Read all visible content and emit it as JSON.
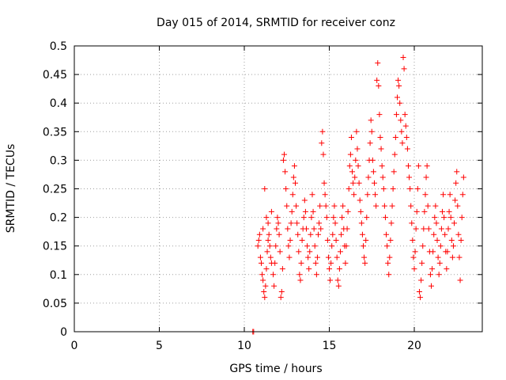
{
  "chart_data": {
    "type": "scatter",
    "title": "Day 015 of 2014, SRMTID for receiver conz",
    "xlabel": "GPS time / hours",
    "ylabel": "SRMTID / TECUs",
    "xlim": [
      0,
      24
    ],
    "ylim": [
      0,
      0.5
    ],
    "xticks": [
      0,
      5,
      10,
      15,
      20
    ],
    "yticks": [
      0,
      0.05,
      0.1,
      0.15,
      0.2,
      0.25,
      0.3,
      0.35,
      0.4,
      0.45,
      0.5
    ],
    "xtick_labels": [
      "0",
      "5",
      "10",
      "15",
      "20"
    ],
    "ytick_labels": [
      "0",
      "0.05",
      "0.1",
      "0.15",
      "0.2",
      "0.25",
      "0.3",
      "0.35",
      "0.4",
      "0.45",
      "0.5"
    ],
    "grid": true,
    "marker": "+",
    "color": "#ff0000",
    "series": [
      {
        "name": "SRMTID",
        "points": [
          [
            10.5,
            0.0
          ],
          [
            10.55,
            0.0
          ],
          [
            10.8,
            0.15
          ],
          [
            10.85,
            0.16
          ],
          [
            10.9,
            0.17
          ],
          [
            10.95,
            0.13
          ],
          [
            11.0,
            0.12
          ],
          [
            11.05,
            0.1
          ],
          [
            11.1,
            0.09
          ],
          [
            11.15,
            0.07
          ],
          [
            11.2,
            0.06
          ],
          [
            11.25,
            0.08
          ],
          [
            11.3,
            0.11
          ],
          [
            11.35,
            0.14
          ],
          [
            11.4,
            0.16
          ],
          [
            11.45,
            0.17
          ],
          [
            11.5,
            0.15
          ],
          [
            11.55,
            0.13
          ],
          [
            11.6,
            0.12
          ],
          [
            11.2,
            0.25
          ],
          [
            11.3,
            0.2
          ],
          [
            11.1,
            0.18
          ],
          [
            11.4,
            0.19
          ],
          [
            11.6,
            0.21
          ],
          [
            11.7,
            0.1
          ],
          [
            11.75,
            0.08
          ],
          [
            11.8,
            0.12
          ],
          [
            11.85,
            0.15
          ],
          [
            11.9,
            0.18
          ],
          [
            11.95,
            0.2
          ],
          [
            12.0,
            0.19
          ],
          [
            12.05,
            0.17
          ],
          [
            12.1,
            0.14
          ],
          [
            12.15,
            0.06
          ],
          [
            12.2,
            0.07
          ],
          [
            12.25,
            0.11
          ],
          [
            12.3,
            0.3
          ],
          [
            12.35,
            0.31
          ],
          [
            12.4,
            0.28
          ],
          [
            12.45,
            0.25
          ],
          [
            12.5,
            0.22
          ],
          [
            12.55,
            0.18
          ],
          [
            12.6,
            0.15
          ],
          [
            12.65,
            0.13
          ],
          [
            12.7,
            0.16
          ],
          [
            12.75,
            0.19
          ],
          [
            12.8,
            0.21
          ],
          [
            12.85,
            0.24
          ],
          [
            12.9,
            0.27
          ],
          [
            12.95,
            0.29
          ],
          [
            13.0,
            0.26
          ],
          [
            13.05,
            0.22
          ],
          [
            13.1,
            0.19
          ],
          [
            13.15,
            0.17
          ],
          [
            13.2,
            0.14
          ],
          [
            13.25,
            0.1
          ],
          [
            13.3,
            0.09
          ],
          [
            13.35,
            0.12
          ],
          [
            13.4,
            0.16
          ],
          [
            13.45,
            0.18
          ],
          [
            13.5,
            0.2
          ],
          [
            13.55,
            0.23
          ],
          [
            13.6,
            0.21
          ],
          [
            13.65,
            0.18
          ],
          [
            13.7,
            0.15
          ],
          [
            13.75,
            0.13
          ],
          [
            13.8,
            0.11
          ],
          [
            13.85,
            0.14
          ],
          [
            13.9,
            0.17
          ],
          [
            13.95,
            0.2
          ],
          [
            14.0,
            0.24
          ],
          [
            14.05,
            0.21
          ],
          [
            14.1,
            0.18
          ],
          [
            14.15,
            0.15
          ],
          [
            14.2,
            0.12
          ],
          [
            14.25,
            0.1
          ],
          [
            14.3,
            0.13
          ],
          [
            14.35,
            0.17
          ],
          [
            14.4,
            0.19
          ],
          [
            14.45,
            0.22
          ],
          [
            14.5,
            0.18
          ],
          [
            14.55,
            0.33
          ],
          [
            14.6,
            0.35
          ],
          [
            14.65,
            0.31
          ],
          [
            14.7,
            0.26
          ],
          [
            14.75,
            0.24
          ],
          [
            14.8,
            0.22
          ],
          [
            14.85,
            0.2
          ],
          [
            14.9,
            0.16
          ],
          [
            14.95,
            0.13
          ],
          [
            15.0,
            0.11
          ],
          [
            15.05,
            0.09
          ],
          [
            15.1,
            0.12
          ],
          [
            15.15,
            0.15
          ],
          [
            15.2,
            0.17
          ],
          [
            15.25,
            0.2
          ],
          [
            15.3,
            0.22
          ],
          [
            15.35,
            0.19
          ],
          [
            15.4,
            0.16
          ],
          [
            15.45,
            0.13
          ],
          [
            15.5,
            0.09
          ],
          [
            15.55,
            0.08
          ],
          [
            15.6,
            0.11
          ],
          [
            15.65,
            0.14
          ],
          [
            15.7,
            0.17
          ],
          [
            15.75,
            0.2
          ],
          [
            15.8,
            0.22
          ],
          [
            15.85,
            0.18
          ],
          [
            15.9,
            0.15
          ],
          [
            15.95,
            0.12
          ],
          [
            16.0,
            0.15
          ],
          [
            16.05,
            0.18
          ],
          [
            16.1,
            0.21
          ],
          [
            16.15,
            0.25
          ],
          [
            16.2,
            0.29
          ],
          [
            16.25,
            0.31
          ],
          [
            16.3,
            0.34
          ],
          [
            16.35,
            0.28
          ],
          [
            16.4,
            0.26
          ],
          [
            16.45,
            0.24
          ],
          [
            16.5,
            0.27
          ],
          [
            16.55,
            0.3
          ],
          [
            16.6,
            0.35
          ],
          [
            16.65,
            0.32
          ],
          [
            16.7,
            0.29
          ],
          [
            16.75,
            0.26
          ],
          [
            16.8,
            0.23
          ],
          [
            16.85,
            0.21
          ],
          [
            16.9,
            0.19
          ],
          [
            16.95,
            0.17
          ],
          [
            17.0,
            0.15
          ],
          [
            17.05,
            0.13
          ],
          [
            17.1,
            0.12
          ],
          [
            17.15,
            0.16
          ],
          [
            17.2,
            0.2
          ],
          [
            17.25,
            0.24
          ],
          [
            17.3,
            0.27
          ],
          [
            17.35,
            0.3
          ],
          [
            17.4,
            0.33
          ],
          [
            17.45,
            0.37
          ],
          [
            17.5,
            0.35
          ],
          [
            17.55,
            0.3
          ],
          [
            17.6,
            0.28
          ],
          [
            17.65,
            0.26
          ],
          [
            17.7,
            0.24
          ],
          [
            17.75,
            0.22
          ],
          [
            17.8,
            0.44
          ],
          [
            17.85,
            0.47
          ],
          [
            17.9,
            0.43
          ],
          [
            17.95,
            0.38
          ],
          [
            18.0,
            0.34
          ],
          [
            18.05,
            0.32
          ],
          [
            18.1,
            0.29
          ],
          [
            18.15,
            0.27
          ],
          [
            18.2,
            0.25
          ],
          [
            18.25,
            0.22
          ],
          [
            18.3,
            0.2
          ],
          [
            18.35,
            0.17
          ],
          [
            18.4,
            0.15
          ],
          [
            18.45,
            0.12
          ],
          [
            18.5,
            0.1
          ],
          [
            18.55,
            0.13
          ],
          [
            18.6,
            0.16
          ],
          [
            18.65,
            0.19
          ],
          [
            18.7,
            0.22
          ],
          [
            18.75,
            0.25
          ],
          [
            18.8,
            0.28
          ],
          [
            18.85,
            0.31
          ],
          [
            18.9,
            0.34
          ],
          [
            18.95,
            0.38
          ],
          [
            19.0,
            0.41
          ],
          [
            19.05,
            0.44
          ],
          [
            19.1,
            0.43
          ],
          [
            19.15,
            0.4
          ],
          [
            19.2,
            0.37
          ],
          [
            19.25,
            0.35
          ],
          [
            19.3,
            0.33
          ],
          [
            19.35,
            0.48
          ],
          [
            19.4,
            0.46
          ],
          [
            19.45,
            0.38
          ],
          [
            19.5,
            0.36
          ],
          [
            19.55,
            0.34
          ],
          [
            19.6,
            0.32
          ],
          [
            19.65,
            0.29
          ],
          [
            19.7,
            0.27
          ],
          [
            19.75,
            0.25
          ],
          [
            19.8,
            0.22
          ],
          [
            19.85,
            0.19
          ],
          [
            19.9,
            0.16
          ],
          [
            19.95,
            0.13
          ],
          [
            20.0,
            0.11
          ],
          [
            20.05,
            0.14
          ],
          [
            20.1,
            0.18
          ],
          [
            20.15,
            0.21
          ],
          [
            20.2,
            0.25
          ],
          [
            20.25,
            0.29
          ],
          [
            20.3,
            0.07
          ],
          [
            20.35,
            0.06
          ],
          [
            20.4,
            0.09
          ],
          [
            20.45,
            0.12
          ],
          [
            20.5,
            0.15
          ],
          [
            20.55,
            0.18
          ],
          [
            20.6,
            0.21
          ],
          [
            20.65,
            0.24
          ],
          [
            20.7,
            0.27
          ],
          [
            20.75,
            0.29
          ],
          [
            20.8,
            0.22
          ],
          [
            20.85,
            0.18
          ],
          [
            20.9,
            0.14
          ],
          [
            20.95,
            0.1
          ],
          [
            21.0,
            0.08
          ],
          [
            21.05,
            0.11
          ],
          [
            21.1,
            0.14
          ],
          [
            21.15,
            0.17
          ],
          [
            21.2,
            0.2
          ],
          [
            21.25,
            0.22
          ],
          [
            21.3,
            0.19
          ],
          [
            21.35,
            0.16
          ],
          [
            21.4,
            0.13
          ],
          [
            21.45,
            0.1
          ],
          [
            21.5,
            0.12
          ],
          [
            21.55,
            0.15
          ],
          [
            21.6,
            0.18
          ],
          [
            21.65,
            0.21
          ],
          [
            21.7,
            0.24
          ],
          [
            21.75,
            0.2
          ],
          [
            21.8,
            0.17
          ],
          [
            21.85,
            0.14
          ],
          [
            21.9,
            0.11
          ],
          [
            21.95,
            0.14
          ],
          [
            22.0,
            0.18
          ],
          [
            22.05,
            0.21
          ],
          [
            22.1,
            0.24
          ],
          [
            22.15,
            0.2
          ],
          [
            22.2,
            0.16
          ],
          [
            22.25,
            0.13
          ],
          [
            22.3,
            0.15
          ],
          [
            22.35,
            0.19
          ],
          [
            22.4,
            0.23
          ],
          [
            22.45,
            0.26
          ],
          [
            22.5,
            0.28
          ],
          [
            22.55,
            0.22
          ],
          [
            22.6,
            0.17
          ],
          [
            22.65,
            0.13
          ],
          [
            22.7,
            0.09
          ],
          [
            22.75,
            0.16
          ],
          [
            22.8,
            0.2
          ],
          [
            22.85,
            0.24
          ],
          [
            22.9,
            0.27
          ]
        ]
      }
    ]
  }
}
